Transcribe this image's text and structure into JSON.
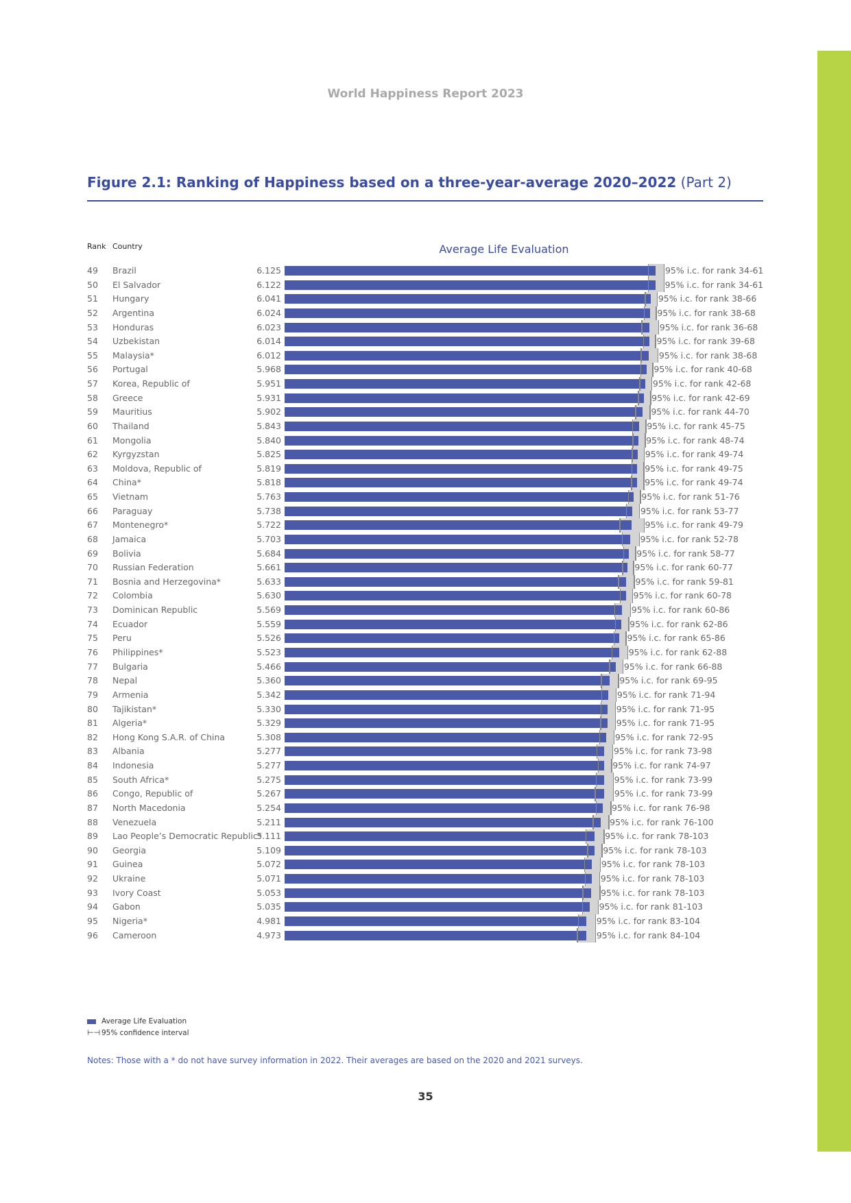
{
  "header": "World Happiness Report 2023",
  "title": {
    "main": "Figure 2.1: Ranking of Happiness based on a three-year-average 2020–2022",
    "part": " (Part 2)"
  },
  "columns": {
    "rank": "Rank",
    "country": "Country"
  },
  "colors": {
    "bar": "#4a5aa8",
    "ci_box": "#d4d4d4",
    "whisker": "#888888",
    "accent": "#3c4c9c",
    "side": "#b7d446"
  },
  "chart_data": {
    "type": "bar",
    "orientation": "horizontal",
    "title": "Average Life Evaluation",
    "xlim": [
      0,
      6.9
    ],
    "rows": [
      {
        "rank": "49",
        "country": "Brazil",
        "value": 6.125,
        "ci_half": 0.13,
        "ci_label": "95% i.c. for rank 34-61"
      },
      {
        "rank": "50",
        "country": "El Salvador",
        "value": 6.122,
        "ci_half": 0.13,
        "ci_label": "95% i.c. for rank 34-61"
      },
      {
        "rank": "51",
        "country": "Hungary",
        "value": 6.041,
        "ci_half": 0.1,
        "ci_label": "95% i.c. for rank 38-66"
      },
      {
        "rank": "52",
        "country": "Argentina",
        "value": 6.024,
        "ci_half": 0.1,
        "ci_label": "95% i.c. for rank 38-68"
      },
      {
        "rank": "53",
        "country": "Honduras",
        "value": 6.023,
        "ci_half": 0.14,
        "ci_label": "95% i.c. for rank 36-68"
      },
      {
        "rank": "54",
        "country": "Uzbekistan",
        "value": 6.014,
        "ci_half": 0.1,
        "ci_label": "95% i.c. for rank 39-68"
      },
      {
        "rank": "55",
        "country": "Malaysia*",
        "value": 6.012,
        "ci_half": 0.14,
        "ci_label": "95% i.c. for rank 38-68"
      },
      {
        "rank": "56",
        "country": "Portugal",
        "value": 5.968,
        "ci_half": 0.1,
        "ci_label": "95% i.c. for rank 40-68"
      },
      {
        "rank": "57",
        "country": "Korea, Republic of",
        "value": 5.951,
        "ci_half": 0.1,
        "ci_label": "95% i.c. for rank 42-68"
      },
      {
        "rank": "58",
        "country": "Greece",
        "value": 5.931,
        "ci_half": 0.1,
        "ci_label": "95% i.c. for rank 42-69"
      },
      {
        "rank": "59",
        "country": "Mauritius",
        "value": 5.902,
        "ci_half": 0.12,
        "ci_label": "95% i.c. for rank 44-70"
      },
      {
        "rank": "60",
        "country": "Thailand",
        "value": 5.843,
        "ci_half": 0.11,
        "ci_label": "95% i.c. for rank 45-75"
      },
      {
        "rank": "61",
        "country": "Mongolia",
        "value": 5.84,
        "ci_half": 0.1,
        "ci_label": "95% i.c. for rank 48-74"
      },
      {
        "rank": "62",
        "country": "Kyrgyzstan",
        "value": 5.825,
        "ci_half": 0.1,
        "ci_label": "95% i.c. for rank 49-74"
      },
      {
        "rank": "63",
        "country": "Moldova, Republic of",
        "value": 5.819,
        "ci_half": 0.1,
        "ci_label": "95% i.c. for rank 49-75"
      },
      {
        "rank": "64",
        "country": "China*",
        "value": 5.818,
        "ci_half": 0.1,
        "ci_label": "95% i.c. for rank 49-74"
      },
      {
        "rank": "65",
        "country": "Vietnam",
        "value": 5.763,
        "ci_half": 0.1,
        "ci_label": "95% i.c. for rank 51-76"
      },
      {
        "rank": "66",
        "country": "Paraguay",
        "value": 5.738,
        "ci_half": 0.11,
        "ci_label": "95% i.c. for rank 53-77"
      },
      {
        "rank": "67",
        "country": "Montenegro*",
        "value": 5.722,
        "ci_half": 0.2,
        "ci_label": "95% i.c. for rank 49-79"
      },
      {
        "rank": "68",
        "country": "Jamaica",
        "value": 5.703,
        "ci_half": 0.14,
        "ci_label": "95% i.c. for rank 52-78"
      },
      {
        "rank": "69",
        "country": "Bolivia",
        "value": 5.684,
        "ci_half": 0.1,
        "ci_label": "95% i.c. for rank 58-77"
      },
      {
        "rank": "70",
        "country": "Russian Federation",
        "value": 5.661,
        "ci_half": 0.09,
        "ci_label": "95% i.c. for rank 60-77"
      },
      {
        "rank": "71",
        "country": "Bosnia and Herzegovina*",
        "value": 5.633,
        "ci_half": 0.13,
        "ci_label": "95% i.c. for rank 59-81"
      },
      {
        "rank": "72",
        "country": "Colombia",
        "value": 5.63,
        "ci_half": 0.1,
        "ci_label": "95% i.c. for rank 60-78"
      },
      {
        "rank": "73",
        "country": "Dominican Republic",
        "value": 5.569,
        "ci_half": 0.13,
        "ci_label": "95% i.c. for rank 60-86"
      },
      {
        "rank": "74",
        "country": "Ecuador",
        "value": 5.559,
        "ci_half": 0.11,
        "ci_label": "95% i.c. for rank 62-86"
      },
      {
        "rank": "75",
        "country": "Peru",
        "value": 5.526,
        "ci_half": 0.1,
        "ci_label": "95% i.c. for rank 65-86"
      },
      {
        "rank": "76",
        "country": "Philippines*",
        "value": 5.523,
        "ci_half": 0.13,
        "ci_label": "95% i.c. for rank 62-88"
      },
      {
        "rank": "77",
        "country": "Bulgaria",
        "value": 5.466,
        "ci_half": 0.11,
        "ci_label": "95% i.c. for rank 66-88"
      },
      {
        "rank": "78",
        "country": "Nepal",
        "value": 5.36,
        "ci_half": 0.14,
        "ci_label": "95% i.c. for rank 69-95"
      },
      {
        "rank": "79",
        "country": "Armenia",
        "value": 5.342,
        "ci_half": 0.12,
        "ci_label": "95% i.c. for rank 71-94"
      },
      {
        "rank": "80",
        "country": "Tajikistan*",
        "value": 5.33,
        "ci_half": 0.12,
        "ci_label": "95% i.c. for rank 71-95"
      },
      {
        "rank": "81",
        "country": "Algeria*",
        "value": 5.329,
        "ci_half": 0.12,
        "ci_label": "95% i.c. for rank 71-95"
      },
      {
        "rank": "82",
        "country": "Hong Kong S.A.R. of China",
        "value": 5.308,
        "ci_half": 0.12,
        "ci_label": "95% i.c. for rank 72-95"
      },
      {
        "rank": "83",
        "country": "Albania",
        "value": 5.277,
        "ci_half": 0.13,
        "ci_label": "95% i.c. for rank 73-98"
      },
      {
        "rank": "84",
        "country": "Indonesia",
        "value": 5.277,
        "ci_half": 0.11,
        "ci_label": "95% i.c. for rank 74-97"
      },
      {
        "rank": "85",
        "country": "South Africa*",
        "value": 5.275,
        "ci_half": 0.14,
        "ci_label": "95% i.c. for rank 73-99"
      },
      {
        "rank": "86",
        "country": "Congo, Republic of",
        "value": 5.267,
        "ci_half": 0.15,
        "ci_label": "95% i.c. for rank 73-99"
      },
      {
        "rank": "87",
        "country": "North Macedonia",
        "value": 5.254,
        "ci_half": 0.12,
        "ci_label": "95% i.c. for rank 76-98"
      },
      {
        "rank": "88",
        "country": "Venezuela",
        "value": 5.211,
        "ci_half": 0.13,
        "ci_label": "95% i.c. for rank 76-100"
      },
      {
        "rank": "89",
        "country": "Lao People’s Democratic Republic*",
        "value": 5.111,
        "ci_half": 0.15,
        "ci_label": "95% i.c. for rank 78-103"
      },
      {
        "rank": "90",
        "country": "Georgia",
        "value": 5.109,
        "ci_half": 0.12,
        "ci_label": "95% i.c. for rank 78-103"
      },
      {
        "rank": "91",
        "country": "Guinea",
        "value": 5.072,
        "ci_half": 0.13,
        "ci_label": "95% i.c. for rank 78-103"
      },
      {
        "rank": "92",
        "country": "Ukraine",
        "value": 5.071,
        "ci_half": 0.12,
        "ci_label": "95% i.c. for rank 78-103"
      },
      {
        "rank": "93",
        "country": "Ivory Coast",
        "value": 5.053,
        "ci_half": 0.14,
        "ci_label": "95% i.c. for rank 78-103"
      },
      {
        "rank": "94",
        "country": "Gabon",
        "value": 5.035,
        "ci_half": 0.13,
        "ci_label": "95% i.c. for rank 81-103"
      },
      {
        "rank": "95",
        "country": "Nigeria*",
        "value": 4.981,
        "ci_half": 0.14,
        "ci_label": "95% i.c. for rank 83-104"
      },
      {
        "rank": "96",
        "country": "Cameroon",
        "value": 4.973,
        "ci_half": 0.15,
        "ci_label": "95% i.c. for rank 84-104"
      }
    ],
    "legend": {
      "bar": "Average Life Evaluation",
      "ci": "95% confidence interval",
      "position": "bottom-left"
    }
  },
  "notes": "Notes: Those with a * do not have survey information in 2022. Their averages are based on the 2020 and 2021 surveys.",
  "page_number": "35"
}
